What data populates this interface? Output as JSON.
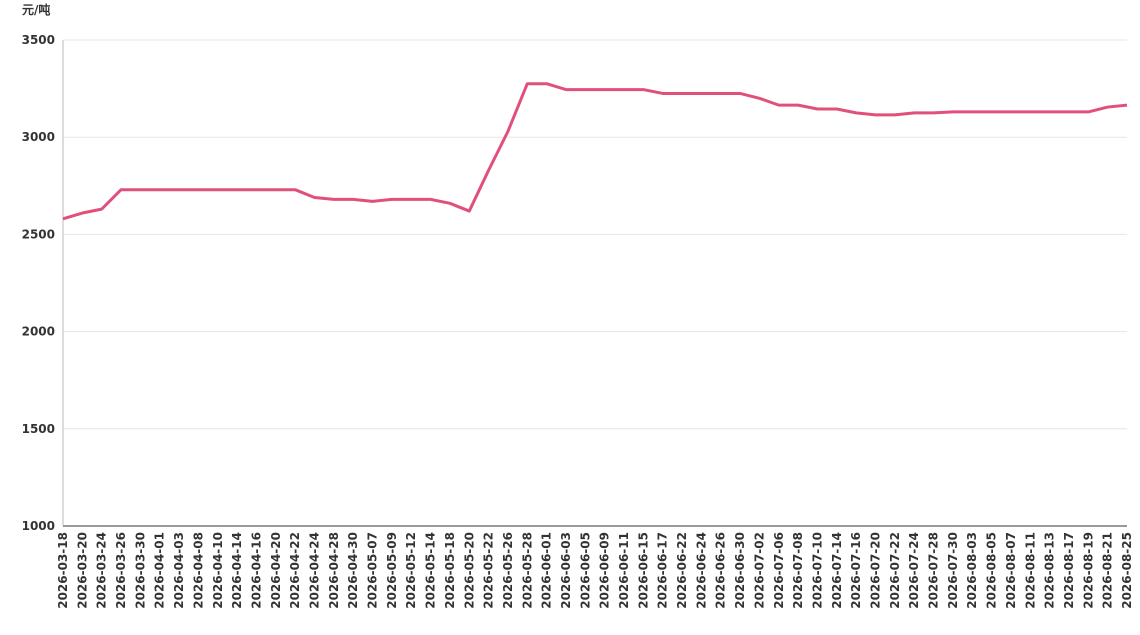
{
  "chart_data": {
    "type": "line",
    "y_label": "元/吨",
    "categories": [
      "2026-03-18",
      "2026-03-20",
      "2026-03-24",
      "2026-03-26",
      "2026-03-30",
      "2026-04-01",
      "2026-04-03",
      "2026-04-08",
      "2026-04-10",
      "2026-04-14",
      "2026-04-16",
      "2026-04-20",
      "2026-04-22",
      "2026-04-24",
      "2026-04-28",
      "2026-04-30",
      "2026-05-07",
      "2026-05-09",
      "2026-05-12",
      "2026-05-14",
      "2026-05-18",
      "2026-05-20",
      "2026-05-22",
      "2026-05-26",
      "2026-05-28",
      "2026-06-01",
      "2026-06-03",
      "2026-06-05",
      "2026-06-09",
      "2026-06-11",
      "2026-06-15",
      "2026-06-17",
      "2026-06-22",
      "2026-06-24",
      "2026-06-26",
      "2026-06-30",
      "2026-07-02",
      "2026-07-06",
      "2026-07-08",
      "2026-07-10",
      "2026-07-14",
      "2026-07-16",
      "2026-07-20",
      "2026-07-22",
      "2026-07-24",
      "2026-07-28",
      "2026-07-30",
      "2026-08-03",
      "2026-08-05",
      "2026-08-07",
      "2026-08-11",
      "2026-08-13",
      "2026-08-17",
      "2026-08-19",
      "2026-08-21",
      "2026-08-25"
    ],
    "values": [
      2580,
      2610,
      2630,
      2730,
      2730,
      2730,
      2730,
      2730,
      2730,
      2730,
      2730,
      2730,
      2730,
      2690,
      2680,
      2680,
      2670,
      2680,
      2680,
      2680,
      2660,
      2620,
      2830,
      3030,
      3275,
      3275,
      3245,
      3245,
      3245,
      3245,
      3245,
      3225,
      3225,
      3225,
      3225,
      3225,
      3200,
      3165,
      3165,
      3145,
      3145,
      3125,
      3115,
      3115,
      3125,
      3125,
      3130,
      3130,
      3130,
      3130,
      3130,
      3130,
      3130,
      3130,
      3155,
      3165
    ],
    "color": "#e0507a",
    "ylim": [
      1000,
      3500
    ],
    "yticks": [
      1000,
      1500,
      2000,
      2500,
      3000,
      3500
    ],
    "grid": true
  }
}
